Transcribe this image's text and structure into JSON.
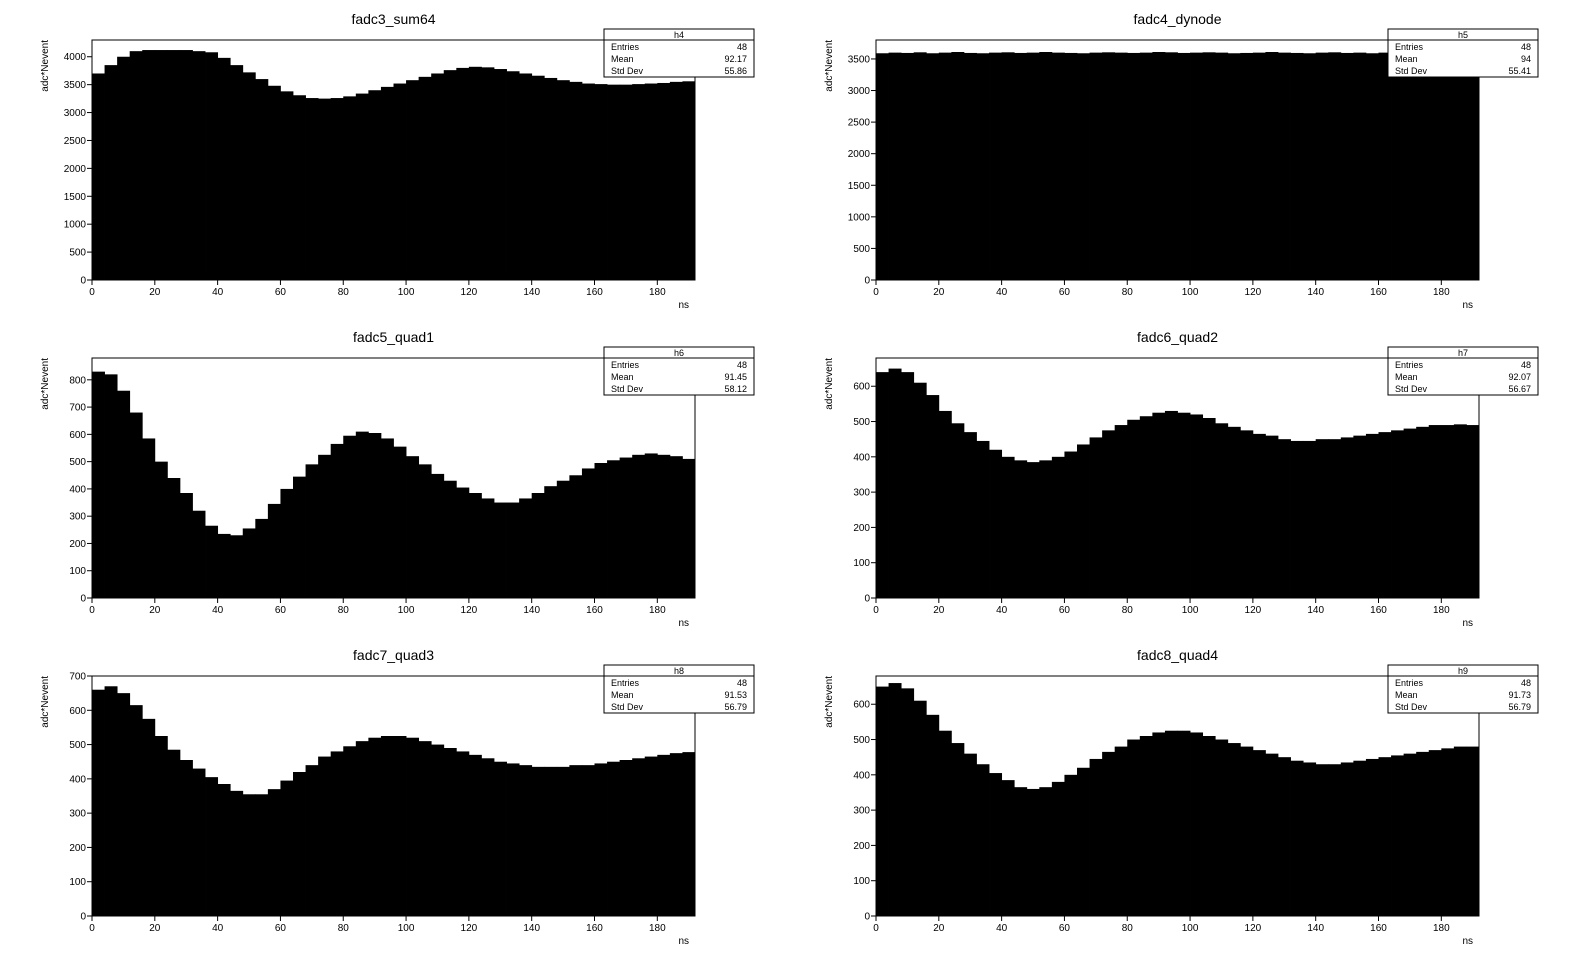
{
  "chart_data": [
    {
      "type": "bar",
      "title": "fadc3_sum64",
      "xlabel": "ns",
      "ylabel": "adc*Nevent",
      "xlim": [
        0,
        192
      ],
      "ylim": [
        0,
        4300
      ],
      "x_ticks": [
        0,
        20,
        40,
        60,
        80,
        100,
        120,
        140,
        160,
        180
      ],
      "y_ticks": [
        0,
        500,
        1000,
        1500,
        2000,
        2500,
        3000,
        3500,
        4000
      ],
      "bin_width": 4,
      "x": [
        0,
        4,
        8,
        12,
        16,
        20,
        24,
        28,
        32,
        36,
        40,
        44,
        48,
        52,
        56,
        60,
        64,
        68,
        72,
        76,
        80,
        84,
        88,
        92,
        96,
        100,
        104,
        108,
        112,
        116,
        120,
        124,
        128,
        132,
        136,
        140,
        144,
        148,
        152,
        156,
        160,
        164,
        168,
        172,
        176,
        180,
        184,
        188
      ],
      "values": [
        3700,
        3850,
        4000,
        4100,
        4120,
        4120,
        4120,
        4120,
        4100,
        4080,
        3980,
        3850,
        3720,
        3600,
        3480,
        3380,
        3310,
        3260,
        3250,
        3260,
        3290,
        3340,
        3400,
        3460,
        3520,
        3580,
        3640,
        3700,
        3760,
        3800,
        3820,
        3810,
        3780,
        3740,
        3700,
        3660,
        3620,
        3580,
        3550,
        3520,
        3510,
        3500,
        3500,
        3510,
        3520,
        3530,
        3550,
        3560
      ],
      "stats": {
        "name": "h4",
        "entries_label": "Entries",
        "entries": "48",
        "mean_label": "Mean",
        "mean": "92.17",
        "stddev_label": "Std Dev",
        "stddev": "55.86"
      }
    },
    {
      "type": "bar",
      "title": "fadc4_dynode",
      "xlabel": "ns",
      "ylabel": "adc*Nevent",
      "xlim": [
        0,
        192
      ],
      "ylim": [
        0,
        3800
      ],
      "x_ticks": [
        0,
        20,
        40,
        60,
        80,
        100,
        120,
        140,
        160,
        180
      ],
      "y_ticks": [
        0,
        500,
        1000,
        1500,
        2000,
        2500,
        3000,
        3500
      ],
      "bin_width": 4,
      "x": [
        0,
        4,
        8,
        12,
        16,
        20,
        24,
        28,
        32,
        36,
        40,
        44,
        48,
        52,
        56,
        60,
        64,
        68,
        72,
        76,
        80,
        84,
        88,
        92,
        96,
        100,
        104,
        108,
        112,
        116,
        120,
        124,
        128,
        132,
        136,
        140,
        144,
        148,
        152,
        156,
        160,
        164,
        168,
        172,
        176,
        180,
        184,
        188
      ],
      "values": [
        3590,
        3600,
        3595,
        3605,
        3590,
        3600,
        3610,
        3595,
        3590,
        3600,
        3605,
        3595,
        3600,
        3610,
        3600,
        3595,
        3590,
        3600,
        3605,
        3600,
        3595,
        3600,
        3610,
        3605,
        3595,
        3600,
        3605,
        3600,
        3590,
        3595,
        3600,
        3610,
        3600,
        3595,
        3590,
        3600,
        3605,
        3595,
        3600,
        3590,
        3600,
        3605,
        3595,
        3600,
        3590,
        3600,
        3605,
        3600
      ],
      "stats": {
        "name": "h5",
        "entries_label": "Entries",
        "entries": "48",
        "mean_label": "Mean",
        "mean": "94",
        "stddev_label": "Std Dev",
        "stddev": "55.41"
      }
    },
    {
      "type": "bar",
      "title": "fadc5_quad1",
      "xlabel": "ns",
      "ylabel": "adc*Nevent",
      "xlim": [
        0,
        192
      ],
      "ylim": [
        0,
        880
      ],
      "x_ticks": [
        0,
        20,
        40,
        60,
        80,
        100,
        120,
        140,
        160,
        180
      ],
      "y_ticks": [
        0,
        100,
        200,
        300,
        400,
        500,
        600,
        700,
        800
      ],
      "bin_width": 4,
      "x": [
        0,
        4,
        8,
        12,
        16,
        20,
        24,
        28,
        32,
        36,
        40,
        44,
        48,
        52,
        56,
        60,
        64,
        68,
        72,
        76,
        80,
        84,
        88,
        92,
        96,
        100,
        104,
        108,
        112,
        116,
        120,
        124,
        128,
        132,
        136,
        140,
        144,
        148,
        152,
        156,
        160,
        164,
        168,
        172,
        176,
        180,
        184,
        188
      ],
      "values": [
        830,
        820,
        760,
        680,
        585,
        500,
        440,
        385,
        320,
        265,
        235,
        230,
        255,
        290,
        345,
        400,
        445,
        490,
        525,
        565,
        595,
        610,
        605,
        585,
        555,
        520,
        490,
        455,
        430,
        405,
        385,
        365,
        350,
        350,
        365,
        385,
        410,
        430,
        450,
        475,
        495,
        505,
        515,
        525,
        530,
        525,
        520,
        510
      ],
      "stats": {
        "name": "h6",
        "entries_label": "Entries",
        "entries": "48",
        "mean_label": "Mean",
        "mean": "91.45",
        "stddev_label": "Std Dev",
        "stddev": "58.12"
      }
    },
    {
      "type": "bar",
      "title": "fadc6_quad2",
      "xlabel": "ns",
      "ylabel": "adc*Nevent",
      "xlim": [
        0,
        192
      ],
      "ylim": [
        0,
        680
      ],
      "x_ticks": [
        0,
        20,
        40,
        60,
        80,
        100,
        120,
        140,
        160,
        180
      ],
      "y_ticks": [
        0,
        100,
        200,
        300,
        400,
        500,
        600
      ],
      "bin_width": 4,
      "x": [
        0,
        4,
        8,
        12,
        16,
        20,
        24,
        28,
        32,
        36,
        40,
        44,
        48,
        52,
        56,
        60,
        64,
        68,
        72,
        76,
        80,
        84,
        88,
        92,
        96,
        100,
        104,
        108,
        112,
        116,
        120,
        124,
        128,
        132,
        136,
        140,
        144,
        148,
        152,
        156,
        160,
        164,
        168,
        172,
        176,
        180,
        184,
        188
      ],
      "values": [
        640,
        650,
        640,
        610,
        575,
        530,
        495,
        470,
        445,
        420,
        400,
        390,
        385,
        390,
        400,
        415,
        435,
        455,
        475,
        490,
        505,
        515,
        525,
        530,
        525,
        520,
        510,
        495,
        485,
        475,
        465,
        460,
        450,
        445,
        445,
        450,
        450,
        455,
        460,
        465,
        470,
        475,
        480,
        485,
        490,
        490,
        492,
        490
      ],
      "stats": {
        "name": "h7",
        "entries_label": "Entries",
        "entries": "48",
        "mean_label": "Mean",
        "mean": "92.07",
        "stddev_label": "Std Dev",
        "stddev": "56.67"
      }
    },
    {
      "type": "bar",
      "title": "fadc7_quad3",
      "xlabel": "ns",
      "ylabel": "adc*Nevent",
      "xlim": [
        0,
        192
      ],
      "ylim": [
        0,
        700
      ],
      "x_ticks": [
        0,
        20,
        40,
        60,
        80,
        100,
        120,
        140,
        160,
        180
      ],
      "y_ticks": [
        0,
        100,
        200,
        300,
        400,
        500,
        600,
        700
      ],
      "bin_width": 4,
      "x": [
        0,
        4,
        8,
        12,
        16,
        20,
        24,
        28,
        32,
        36,
        40,
        44,
        48,
        52,
        56,
        60,
        64,
        68,
        72,
        76,
        80,
        84,
        88,
        92,
        96,
        100,
        104,
        108,
        112,
        116,
        120,
        124,
        128,
        132,
        136,
        140,
        144,
        148,
        152,
        156,
        160,
        164,
        168,
        172,
        176,
        180,
        184,
        188
      ],
      "values": [
        660,
        670,
        650,
        615,
        575,
        525,
        485,
        455,
        430,
        405,
        385,
        365,
        355,
        355,
        370,
        395,
        420,
        440,
        465,
        480,
        495,
        510,
        520,
        525,
        525,
        520,
        510,
        500,
        490,
        480,
        470,
        460,
        450,
        445,
        440,
        435,
        435,
        435,
        440,
        440,
        445,
        450,
        455,
        460,
        465,
        470,
        475,
        478
      ],
      "stats": {
        "name": "h8",
        "entries_label": "Entries",
        "entries": "48",
        "mean_label": "Mean",
        "mean": "91.53",
        "stddev_label": "Std Dev",
        "stddev": "56.79"
      }
    },
    {
      "type": "bar",
      "title": "fadc8_quad4",
      "xlabel": "ns",
      "ylabel": "adc*Nevent",
      "xlim": [
        0,
        192
      ],
      "ylim": [
        0,
        680
      ],
      "x_ticks": [
        0,
        20,
        40,
        60,
        80,
        100,
        120,
        140,
        160,
        180
      ],
      "y_ticks": [
        0,
        100,
        200,
        300,
        400,
        500,
        600
      ],
      "bin_width": 4,
      "x": [
        0,
        4,
        8,
        12,
        16,
        20,
        24,
        28,
        32,
        36,
        40,
        44,
        48,
        52,
        56,
        60,
        64,
        68,
        72,
        76,
        80,
        84,
        88,
        92,
        96,
        100,
        104,
        108,
        112,
        116,
        120,
        124,
        128,
        132,
        136,
        140,
        144,
        148,
        152,
        156,
        160,
        164,
        168,
        172,
        176,
        180,
        184,
        188
      ],
      "values": [
        650,
        660,
        645,
        610,
        570,
        525,
        490,
        460,
        430,
        405,
        385,
        365,
        360,
        365,
        380,
        400,
        420,
        445,
        465,
        480,
        500,
        510,
        520,
        525,
        525,
        520,
        510,
        500,
        490,
        480,
        470,
        460,
        450,
        440,
        435,
        430,
        430,
        435,
        440,
        445,
        450,
        455,
        460,
        465,
        470,
        475,
        480,
        480
      ],
      "stats": {
        "name": "h9",
        "entries_label": "Entries",
        "entries": "48",
        "mean_label": "Mean",
        "mean": "91.73",
        "stddev_label": "Std Dev",
        "stddev": "56.79"
      }
    }
  ]
}
